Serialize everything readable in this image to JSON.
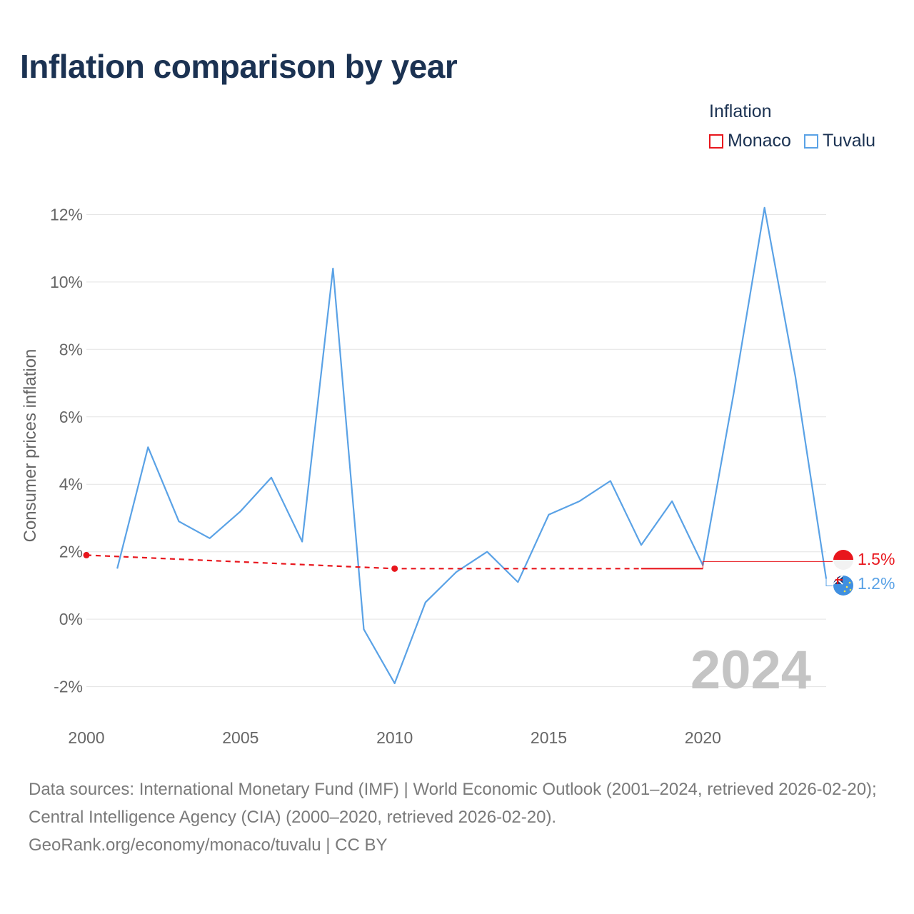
{
  "title": "Inflation comparison by year",
  "legend": {
    "title": "Inflation",
    "items": [
      {
        "name": "Monaco",
        "color": "#e8161d"
      },
      {
        "name": "Tuvalu",
        "color": "#5aa2e6"
      }
    ]
  },
  "chart_data": {
    "type": "line",
    "ylabel": "Consumer prices inflation",
    "xlabel": "",
    "xlim": [
      2000,
      2024
    ],
    "ylim": [
      -2.6,
      12.6
    ],
    "x_ticks": [
      2000,
      2005,
      2010,
      2015,
      2020
    ],
    "x_tick_labels": [
      "2000",
      "2005",
      "2010",
      "2015",
      "2020"
    ],
    "y_ticks": [
      -2,
      0,
      2,
      4,
      6,
      8,
      10,
      12
    ],
    "y_tick_labels": [
      "-2%",
      "0%",
      "2%",
      "4%",
      "6%",
      "8%",
      "10%",
      "12%"
    ],
    "year_watermark": "2024",
    "series": [
      {
        "name": "Tuvalu",
        "color": "#5aa2e6",
        "x": [
          2001,
          2002,
          2003,
          2004,
          2005,
          2006,
          2007,
          2008,
          2009,
          2010,
          2011,
          2012,
          2013,
          2014,
          2015,
          2016,
          2017,
          2018,
          2019,
          2020,
          2021,
          2022,
          2023,
          2024
        ],
        "values": [
          1.5,
          5.1,
          2.9,
          2.4,
          3.2,
          4.2,
          2.3,
          10.4,
          -0.3,
          -1.9,
          0.5,
          1.4,
          2.0,
          1.1,
          3.1,
          3.5,
          4.1,
          2.2,
          3.5,
          1.6,
          6.7,
          12.2,
          7.2,
          1.2
        ],
        "end_label": "1.2%"
      },
      {
        "name": "Monaco",
        "color": "#e8161d",
        "x": [
          2000,
          2010,
          2018,
          2020
        ],
        "values": [
          1.9,
          1.5,
          1.5,
          1.5
        ],
        "estimated_segments": [
          [
            2000,
            2018
          ]
        ],
        "markers": [
          2000,
          2010
        ],
        "end_label": "1.5%"
      }
    ]
  },
  "footer": {
    "sources": "Data sources: International Monetary Fund (IMF) | World Economic Outlook (2001–2024, retrieved 2026-02-20); Central Intelligence Agency (CIA) (2000–2020, retrieved 2026-02-20).",
    "credit": "GeoRank.org/economy/monaco/tuvalu | CC BY"
  }
}
